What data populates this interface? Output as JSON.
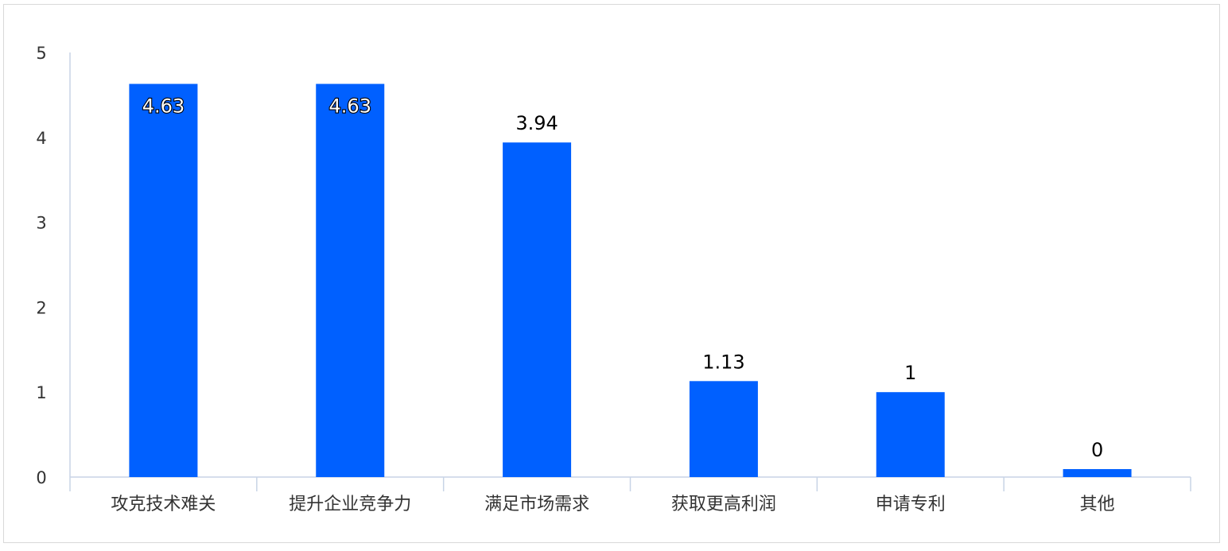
{
  "chart_data": {
    "type": "bar",
    "categories": [
      "攻克技术难关",
      "提升企业竞争力",
      "满足市场需求",
      "获取更高利润",
      "申请专利",
      "其他"
    ],
    "values": [
      4.63,
      4.63,
      3.94,
      1.13,
      1,
      0
    ],
    "data_labels": [
      "4.63",
      "4.63",
      "3.94",
      "1.13",
      "1",
      "0"
    ],
    "yticks": [
      "0",
      "1",
      "2",
      "3",
      "4",
      "5"
    ],
    "ylim": [
      0,
      5
    ],
    "title": "",
    "xlabel": "",
    "ylabel": "",
    "grid": false,
    "bar_color": "#0060ff",
    "axis_color": "#c8d4e6"
  }
}
